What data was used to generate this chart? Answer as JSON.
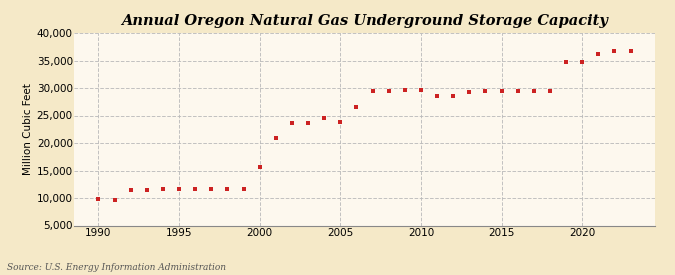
{
  "title": "Annual Oregon Natural Gas Underground Storage Capacity",
  "ylabel": "Million Cubic Feet",
  "source": "Source: U.S. Energy Information Administration",
  "background_color": "#f5e9c8",
  "plot_background_color": "#fdf8ee",
  "marker_color": "#cc2222",
  "grid_color": "#bbbbbb",
  "years": [
    1990,
    1991,
    1992,
    1993,
    1994,
    1995,
    1996,
    1997,
    1998,
    1999,
    2000,
    2001,
    2002,
    2003,
    2004,
    2005,
    2006,
    2007,
    2008,
    2009,
    2010,
    2011,
    2012,
    2013,
    2014,
    2015,
    2016,
    2017,
    2018,
    2019,
    2020,
    2021,
    2022,
    2023
  ],
  "values": [
    9800,
    9700,
    11500,
    11500,
    11700,
    11700,
    11700,
    11700,
    11700,
    11700,
    15700,
    20900,
    23700,
    23700,
    24600,
    23900,
    26600,
    29500,
    29400,
    29600,
    29700,
    28600,
    28600,
    29300,
    29500,
    29500,
    29500,
    29500,
    29500,
    34800,
    34800,
    36200,
    36700,
    36700
  ],
  "xlim": [
    1988.5,
    2024.5
  ],
  "ylim": [
    5000,
    40000
  ],
  "yticks": [
    5000,
    10000,
    15000,
    20000,
    25000,
    30000,
    35000,
    40000
  ],
  "xticks": [
    1990,
    1995,
    2000,
    2005,
    2010,
    2015,
    2020
  ],
  "title_fontsize": 10.5,
  "label_fontsize": 7.5,
  "tick_fontsize": 7.5,
  "source_fontsize": 6.5
}
